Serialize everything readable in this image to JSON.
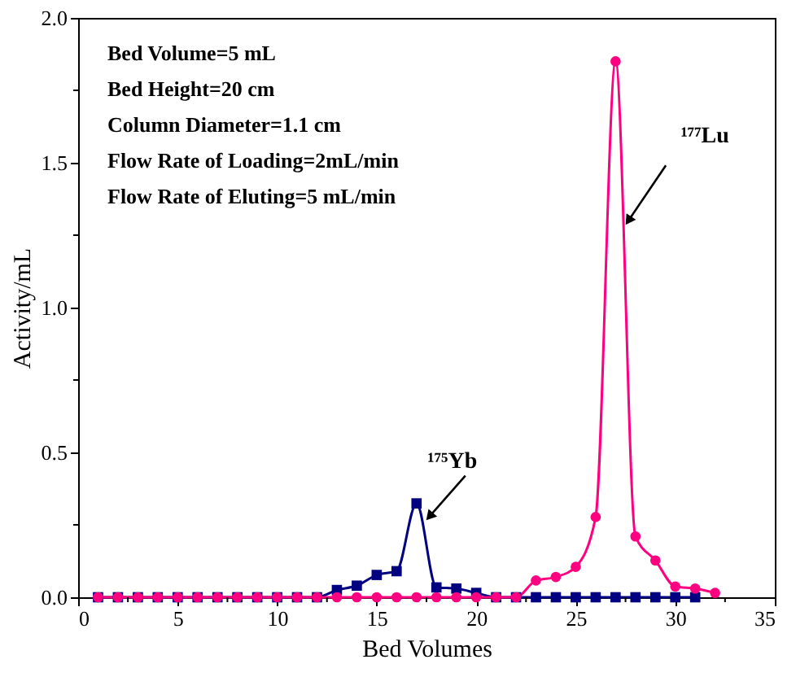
{
  "chart_data": {
    "type": "line",
    "xlabel": "Bed Volumes",
    "ylabel": "Activity/mL",
    "xlim": [
      0,
      35
    ],
    "ylim": [
      0,
      2.0
    ],
    "xticks": [
      0,
      {
        "value": 2.5,
        "label": null
      },
      5,
      {
        "value": 7.5,
        "label": null
      },
      10,
      {
        "value": 12.5,
        "label": null
      },
      15,
      {
        "value": 17.5,
        "label": null
      },
      20,
      {
        "value": 22.5,
        "label": null
      },
      25,
      {
        "value": 27.5,
        "label": null
      },
      30,
      {
        "value": 32.5,
        "label": null
      },
      35
    ],
    "yticks": [
      {
        "value": 0,
        "label": "0.0"
      },
      {
        "value": 0.25,
        "label": null
      },
      {
        "value": 0.5,
        "label": "0.5"
      },
      {
        "value": 0.75,
        "label": null
      },
      {
        "value": 1.0,
        "label": "1.0"
      },
      {
        "value": 1.25,
        "label": null
      },
      {
        "value": 1.5,
        "label": "1.5"
      },
      {
        "value": 1.75,
        "label": null
      },
      {
        "value": 2.0,
        "label": "2.0"
      }
    ],
    "grid": false,
    "line_style": "solid",
    "series": [
      {
        "color": "#000080",
        "marker": "square",
        "x": [
          1,
          2,
          3,
          4,
          5,
          6,
          7,
          8,
          9,
          10,
          11,
          12,
          13,
          14,
          15,
          16,
          17,
          18,
          19,
          20,
          21,
          22,
          23,
          24,
          25,
          26,
          27,
          28,
          29,
          30,
          31
        ],
        "values": [
          0,
          0,
          0,
          0,
          0,
          0,
          0,
          0,
          0,
          0,
          0,
          0,
          0.025,
          0.04,
          0.077,
          0.09,
          0.324,
          0.034,
          0.03,
          0.015,
          0,
          0,
          0,
          0,
          0,
          0,
          0,
          0,
          0,
          0,
          0
        ]
      },
      {
        "color": "#ff0080",
        "marker": "circle",
        "x": [
          1,
          2,
          3,
          4,
          5,
          6,
          7,
          8,
          9,
          10,
          11,
          12,
          13,
          14,
          15,
          16,
          17,
          18,
          19,
          20,
          21,
          22,
          23,
          24,
          25,
          26,
          27,
          28,
          29,
          30,
          31,
          32
        ],
        "values": [
          0,
          0,
          0,
          0,
          0,
          0,
          0,
          0,
          0,
          0,
          0,
          0,
          0,
          0,
          0,
          0,
          0,
          0,
          0,
          0,
          0,
          0,
          0.058,
          0.07,
          0.105,
          0.277,
          1.85,
          0.21,
          0.127,
          0.037,
          0.03,
          0.015
        ]
      }
    ],
    "annotations": [
      "Bed Volume=5 mL",
      "Bed Height=20 cm",
      "Column Diameter=1.1 cm",
      "Flow Rate of Loading=2mL/min",
      "Flow Rate of Eluting=5 mL/min",
      {
        "text": "¹⁷⁵Yb",
        "x": 17,
        "y": 0.324
      },
      {
        "text": "¹⁷⁷Lu",
        "x": 27.4,
        "y": 1.3
      }
    ]
  }
}
